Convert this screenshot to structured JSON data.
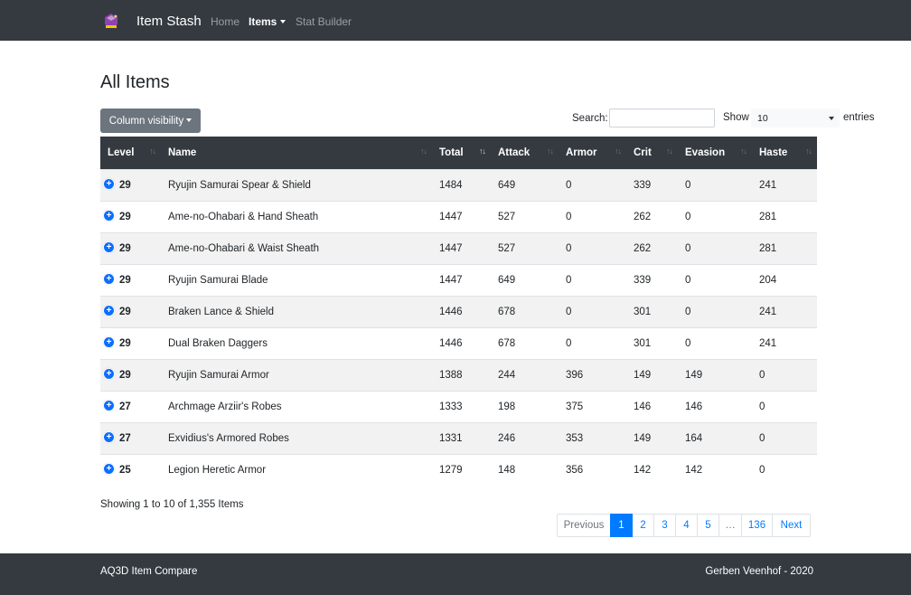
{
  "navbar": {
    "brand": "Item Stash",
    "links": {
      "home": "Home",
      "items": "Items",
      "stat_builder": "Stat Builder"
    }
  },
  "page": {
    "title": "All Items"
  },
  "toolbar": {
    "column_visibility_label": "Column visibility",
    "search_label": "Search:",
    "search_value": "",
    "show_label": "Show",
    "length_value": "10",
    "entries_label": "entries"
  },
  "table": {
    "columns": [
      "Level",
      "Name",
      "Total",
      "Attack",
      "Armor",
      "Crit",
      "Evasion",
      "Haste"
    ],
    "sorted_column": "Total",
    "rows": [
      {
        "level": "29",
        "name": "Ryujin Samurai Spear & Shield",
        "total": "1484",
        "attack": "649",
        "armor": "0",
        "crit": "339",
        "evasion": "0",
        "haste": "241"
      },
      {
        "level": "29",
        "name": "Ame-no-Ohabari & Hand Sheath",
        "total": "1447",
        "attack": "527",
        "armor": "0",
        "crit": "262",
        "evasion": "0",
        "haste": "281"
      },
      {
        "level": "29",
        "name": "Ame-no-Ohabari & Waist Sheath",
        "total": "1447",
        "attack": "527",
        "armor": "0",
        "crit": "262",
        "evasion": "0",
        "haste": "281"
      },
      {
        "level": "29",
        "name": "Ryujin Samurai Blade",
        "total": "1447",
        "attack": "649",
        "armor": "0",
        "crit": "339",
        "evasion": "0",
        "haste": "204"
      },
      {
        "level": "29",
        "name": "Braken Lance & Shield",
        "total": "1446",
        "attack": "678",
        "armor": "0",
        "crit": "301",
        "evasion": "0",
        "haste": "241"
      },
      {
        "level": "29",
        "name": "Dual Braken Daggers",
        "total": "1446",
        "attack": "678",
        "armor": "0",
        "crit": "301",
        "evasion": "0",
        "haste": "241"
      },
      {
        "level": "29",
        "name": "Ryujin Samurai Armor",
        "total": "1388",
        "attack": "244",
        "armor": "396",
        "crit": "149",
        "evasion": "149",
        "haste": "0"
      },
      {
        "level": "27",
        "name": "Archmage Arziir's Robes",
        "total": "1333",
        "attack": "198",
        "armor": "375",
        "crit": "146",
        "evasion": "146",
        "haste": "0"
      },
      {
        "level": "27",
        "name": "Exvidius's Armored Robes",
        "total": "1331",
        "attack": "246",
        "armor": "353",
        "crit": "149",
        "evasion": "164",
        "haste": "0"
      },
      {
        "level": "25",
        "name": "Legion Heretic Armor",
        "total": "1279",
        "attack": "148",
        "armor": "356",
        "crit": "142",
        "evasion": "142",
        "haste": "0"
      }
    ]
  },
  "info": "Showing 1 to 10 of 1,355 Items",
  "pagination": {
    "previous": "Previous",
    "pages": [
      "1",
      "2",
      "3",
      "4",
      "5",
      "…",
      "136"
    ],
    "active_page": "1",
    "next": "Next"
  },
  "footer": {
    "left": "AQ3D Item Compare",
    "right": "Gerben Veenhof - 2020"
  },
  "colors": {
    "navbar": "#343a40",
    "primary": "#007bff",
    "secondary": "#6c757d",
    "stripe": "#f2f2f2"
  }
}
